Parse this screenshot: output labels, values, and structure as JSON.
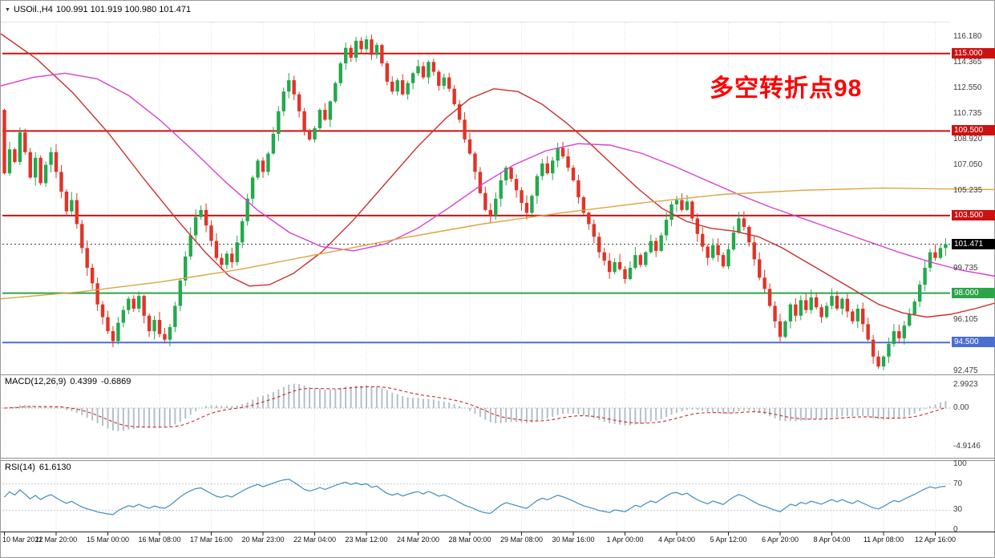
{
  "title": {
    "symbol": "USOil.,H4",
    "ohlc": "100.991 101.919 100.980 101.471"
  },
  "annotation": {
    "text": "多空转折点98",
    "color": "#ff0000"
  },
  "chart_data": {
    "type": "candlestick",
    "symbol": "USOil",
    "timeframe": "H4",
    "title": "USOil.,H4 100.991 101.919 100.980 101.471",
    "ohlc_display": {
      "open": "100.991",
      "high": "101.919",
      "low": "100.980",
      "close": "101.471"
    },
    "price_axis": {
      "max": 117.2,
      "min": 92.35,
      "gray_labels": [
        "116.180",
        "114.365",
        "112.550",
        "110.735",
        "108.920",
        "107.050",
        "105.235",
        "99.735",
        "96.105",
        "92.475"
      ],
      "hlines": [
        {
          "value": 115.0,
          "label": "115.000",
          "color": "#cc1111"
        },
        {
          "value": 109.5,
          "label": "109.500",
          "color": "#cc1111"
        },
        {
          "value": 103.5,
          "label": "103.500",
          "color": "#cc1111"
        },
        {
          "value": 98.0,
          "label": "98.000",
          "color": "#2ca54a"
        },
        {
          "value": 94.5,
          "label": "94.500",
          "color": "#4a6fd1"
        }
      ],
      "current_price": {
        "value": 101.471,
        "label": "101.471",
        "badge_color": "#000000"
      }
    },
    "candles": {
      "first_open": 111.0,
      "up_color": "#23a94c",
      "down_color": "#e03427",
      "closes": [
        106.5,
        108.2,
        107.3,
        109.4,
        108.0,
        106.2,
        107.6,
        105.8,
        107.1,
        108.0,
        106.6,
        105.2,
        103.8,
        104.6,
        102.9,
        101.2,
        99.8,
        98.7,
        97.2,
        96.3,
        95.3,
        94.6,
        95.9,
        96.8,
        97.6,
        96.9,
        97.8,
        96.4,
        95.3,
        96.1,
        95.1,
        94.7,
        95.6,
        97.1,
        98.9,
        100.6,
        102.1,
        103.4,
        103.9,
        102.8,
        101.7,
        100.5,
        100.0,
        100.8,
        100.2,
        101.6,
        103.1,
        104.7,
        106.2,
        107.4,
        106.6,
        107.9,
        109.3,
        110.9,
        112.3,
        113.1,
        112.1,
        110.9,
        109.5,
        108.9,
        109.7,
        111.0,
        110.3,
        111.6,
        112.9,
        114.3,
        115.4,
        114.7,
        115.9,
        115.3,
        116.0,
        114.9,
        115.6,
        114.3,
        113.0,
        112.3,
        113.1,
        112.1,
        112.9,
        113.6,
        114.1,
        113.3,
        114.4,
        113.7,
        112.7,
        113.3,
        112.5,
        111.4,
        110.3,
        108.9,
        107.9,
        106.6,
        105.1,
        103.9,
        103.5,
        104.7,
        106.0,
        106.9,
        106.1,
        105.3,
        104.4,
        103.7,
        104.9,
        106.3,
        107.2,
        106.5,
        107.4,
        108.3,
        107.7,
        106.9,
        106.0,
        104.8,
        103.7,
        102.9,
        102.0,
        100.9,
        100.3,
        99.5,
        100.2,
        99.7,
        99.0,
        99.8,
        100.7,
        100.0,
        100.9,
        101.7,
        101.0,
        102.1,
        103.2,
        104.3,
        104.6,
        103.9,
        104.5,
        103.3,
        102.2,
        101.3,
        100.5,
        101.4,
        100.7,
        99.9,
        101.1,
        102.3,
        103.3,
        102.7,
        101.6,
        100.4,
        99.1,
        98.3,
        97.1,
        96.0,
        94.9,
        96.0,
        97.2,
        96.4,
        97.5,
        96.8,
        97.7,
        97.0,
        96.3,
        97.1,
        97.8,
        96.9,
        97.6,
        96.7,
        96.0,
        96.9,
        95.8,
        94.7,
        93.5,
        92.8,
        93.5,
        94.4,
        95.3,
        94.8,
        95.7,
        96.5,
        97.4,
        98.6,
        99.8,
        100.9,
        100.5,
        101.2,
        101.471
      ]
    },
    "moving_averages": [
      {
        "name": "ma-medium-red",
        "color": "#c9302c",
        "points": [
          [
            0,
            116.4
          ],
          [
            45,
            114.6
          ],
          [
            90,
            112.2
          ],
          [
            135,
            109.3
          ],
          [
            180,
            106.0
          ],
          [
            220,
            103.2
          ],
          [
            255,
            100.9
          ],
          [
            285,
            99.2
          ],
          [
            310,
            98.5
          ],
          [
            335,
            98.6
          ],
          [
            365,
            99.4
          ],
          [
            400,
            100.9
          ],
          [
            440,
            103.2
          ],
          [
            480,
            105.8
          ],
          [
            520,
            108.4
          ],
          [
            555,
            110.4
          ],
          [
            585,
            111.8
          ],
          [
            615,
            112.5
          ],
          [
            645,
            112.3
          ],
          [
            675,
            111.4
          ],
          [
            705,
            110.1
          ],
          [
            735,
            108.6
          ],
          [
            765,
            107.0
          ],
          [
            795,
            105.4
          ],
          [
            825,
            104.0
          ],
          [
            855,
            103.1
          ],
          [
            885,
            102.6
          ],
          [
            915,
            102.4
          ],
          [
            945,
            102.0
          ],
          [
            975,
            101.2
          ],
          [
            1005,
            100.2
          ],
          [
            1035,
            99.2
          ],
          [
            1065,
            98.2
          ],
          [
            1095,
            97.2
          ],
          [
            1125,
            96.6
          ],
          [
            1155,
            96.3
          ],
          [
            1185,
            96.5
          ],
          [
            1215,
            96.9
          ],
          [
            1240,
            97.3
          ]
        ]
      },
      {
        "name": "ma-slow-magenta",
        "color": "#d83fd0",
        "points": [
          [
            0,
            112.7
          ],
          [
            40,
            113.3
          ],
          [
            80,
            113.6
          ],
          [
            120,
            113.2
          ],
          [
            160,
            112.0
          ],
          [
            200,
            110.2
          ],
          [
            240,
            108.1
          ],
          [
            280,
            105.9
          ],
          [
            320,
            103.9
          ],
          [
            360,
            102.3
          ],
          [
            400,
            101.3
          ],
          [
            440,
            101.0
          ],
          [
            480,
            101.5
          ],
          [
            520,
            102.6
          ],
          [
            560,
            104.1
          ],
          [
            600,
            105.7
          ],
          [
            640,
            107.1
          ],
          [
            680,
            108.1
          ],
          [
            720,
            108.6
          ],
          [
            760,
            108.5
          ],
          [
            800,
            107.9
          ],
          [
            840,
            107.0
          ],
          [
            880,
            106.0
          ],
          [
            920,
            105.0
          ],
          [
            960,
            104.1
          ],
          [
            1000,
            103.3
          ],
          [
            1040,
            102.5
          ],
          [
            1080,
            101.7
          ],
          [
            1120,
            100.9
          ],
          [
            1160,
            100.2
          ],
          [
            1200,
            99.6
          ],
          [
            1240,
            99.2
          ]
        ]
      },
      {
        "name": "ma-long-orange",
        "color": "#dba53f",
        "points": [
          [
            0,
            97.6
          ],
          [
            100,
            98.1
          ],
          [
            200,
            98.8
          ],
          [
            300,
            99.7
          ],
          [
            400,
            100.8
          ],
          [
            500,
            101.9
          ],
          [
            600,
            102.9
          ],
          [
            700,
            103.7
          ],
          [
            800,
            104.4
          ],
          [
            900,
            105.0
          ],
          [
            1000,
            105.3
          ],
          [
            1100,
            105.45
          ],
          [
            1240,
            105.35
          ]
        ]
      }
    ],
    "macd": {
      "label": "MACD(12,26,9)",
      "value_main": "0.4399",
      "value_signal": "-0.6869",
      "fast": 12,
      "slow": 26,
      "signal": 9,
      "histogram_color": "#b4bfc9",
      "signal_color": "#cc2a2a",
      "axis_labels": [
        "2.9923",
        "0.00",
        "-4.9146"
      ]
    },
    "rsi": {
      "label": "RSI(14)",
      "value": "61.6130",
      "period": 14,
      "color": "#3b8ebf",
      "levels": [
        100,
        70,
        30,
        0
      ],
      "dashed_levels": [
        70,
        30
      ]
    },
    "time_axis": {
      "labels": [
        {
          "text": "10 Mar 2022",
          "index": 0
        },
        {
          "text": "11 Mar 20:00",
          "index": 10
        },
        {
          "text": "15 Mar 00:00",
          "index": 20
        },
        {
          "text": "16 Mar 08:00",
          "index": 30
        },
        {
          "text": "17 Mar 16:00",
          "index": 40
        },
        {
          "text": "20 Mar 23:00",
          "index": 50
        },
        {
          "text": "22 Mar 04:00",
          "index": 60
        },
        {
          "text": "23 Mar 12:00",
          "index": 70
        },
        {
          "text": "24 Mar 20:00",
          "index": 80
        },
        {
          "text": "28 Mar 00:00",
          "index": 90
        },
        {
          "text": "29 Mar 08:00",
          "index": 100
        },
        {
          "text": "30 Mar 16:00",
          "index": 110
        },
        {
          "text": "1 Apr 00:00",
          "index": 120
        },
        {
          "text": "4 Apr 04:00",
          "index": 130
        },
        {
          "text": "5 Apr 12:00",
          "index": 140
        },
        {
          "text": "6 Apr 20:00",
          "index": 150
        },
        {
          "text": "8 Apr 04:00",
          "index": 160
        },
        {
          "text": "11 Apr 08:00",
          "index": 170
        },
        {
          "text": "12 Apr 16:00",
          "index": 180
        }
      ]
    }
  }
}
